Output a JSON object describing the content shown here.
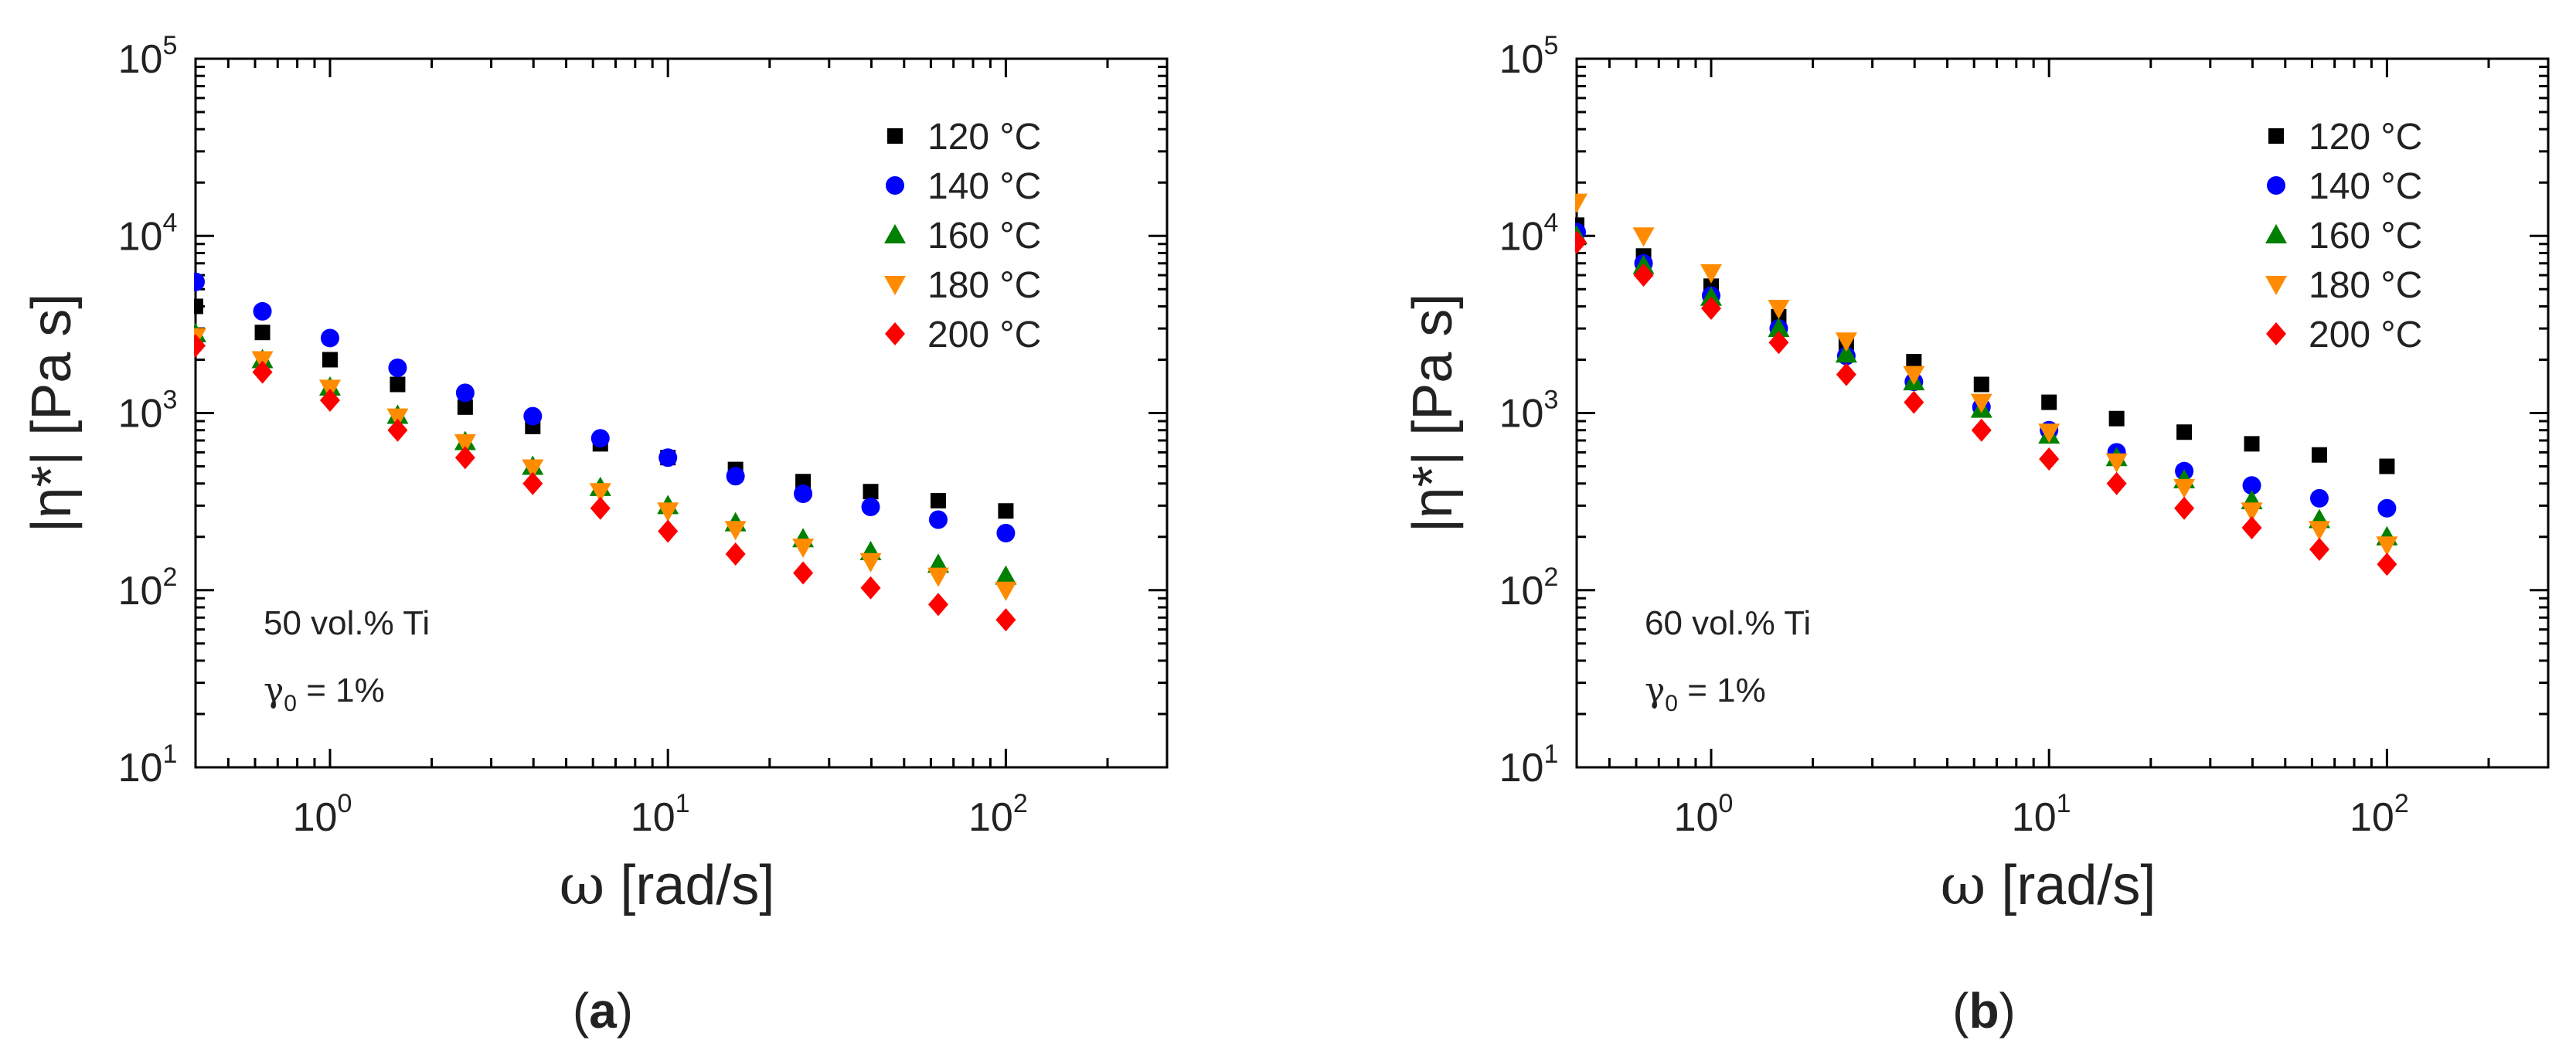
{
  "chart_data": [
    {
      "type": "scatter",
      "panel_label": "a",
      "annotation": "50 vol.% Ti",
      "strain": {
        "symbol": "γ",
        "subscript": "0",
        "value": " = 1%"
      },
      "xlabel": {
        "symbol": "ω",
        "text": " [rad/s]"
      },
      "ylabel": "|η*| [Pa s]",
      "xscale": "log",
      "yscale": "log",
      "xlim": [
        0.4,
        300
      ],
      "ylim": [
        10,
        100000
      ],
      "xticks": [
        {
          "base": "10",
          "exp": "0",
          "value": 1
        },
        {
          "base": "10",
          "exp": "1",
          "value": 10
        },
        {
          "base": "10",
          "exp": "2",
          "value": 100
        }
      ],
      "yticks": [
        {
          "base": "10",
          "exp": "1",
          "value": 10
        },
        {
          "base": "10",
          "exp": "2",
          "value": 100
        },
        {
          "base": "10",
          "exp": "3",
          "value": 1000
        },
        {
          "base": "10",
          "exp": "4",
          "value": 10000
        },
        {
          "base": "10",
          "exp": "5",
          "value": 100000
        }
      ],
      "legend_position": "top-right",
      "x": [
        0.4,
        0.631,
        1,
        1.585,
        2.512,
        3.981,
        6.31,
        10,
        15.85,
        25.12,
        39.81,
        63.1,
        100
      ],
      "series": [
        {
          "name": "120 °C",
          "color": "#000000",
          "marker": "square",
          "values": [
            4000,
            2850,
            2000,
            1450,
            1080,
            840,
            670,
            560,
            480,
            410,
            360,
            320,
            280
          ]
        },
        {
          "name": "140 °C",
          "color": "#0000ff",
          "marker": "circle",
          "values": [
            5500,
            3750,
            2650,
            1800,
            1300,
            960,
            720,
            560,
            440,
            350,
            295,
            250,
            210
          ]
        },
        {
          "name": "160 °C",
          "color": "#008000",
          "marker": "triangle-up",
          "values": [
            2800,
            2000,
            1400,
            970,
            690,
            500,
            380,
            300,
            240,
            195,
            165,
            140,
            120
          ]
        },
        {
          "name": "180 °C",
          "color": "#ff8c00",
          "marker": "triangle-down",
          "values": [
            2700,
            2000,
            1380,
            950,
            680,
            490,
            360,
            280,
            220,
            175,
            145,
            120,
            100
          ]
        },
        {
          "name": "200 °C",
          "color": "#ff0000",
          "marker": "diamond",
          "values": [
            2400,
            1700,
            1180,
            800,
            560,
            400,
            290,
            215,
            160,
            125,
            103,
            83,
            68
          ]
        }
      ]
    },
    {
      "type": "scatter",
      "panel_label": "b",
      "annotation": "60 vol.% Ti",
      "strain": {
        "symbol": "γ",
        "subscript": "0",
        "value": " = 1%"
      },
      "xlabel": {
        "symbol": "ω",
        "text": " [rad/s]"
      },
      "ylabel": "|η*| [Pa s]",
      "xscale": "log",
      "yscale": "log",
      "xlim": [
        0.4,
        300
      ],
      "ylim": [
        10,
        100000
      ],
      "xticks": [
        {
          "base": "10",
          "exp": "0",
          "value": 1
        },
        {
          "base": "10",
          "exp": "1",
          "value": 10
        },
        {
          "base": "10",
          "exp": "2",
          "value": 100
        }
      ],
      "yticks": [
        {
          "base": "10",
          "exp": "1",
          "value": 10
        },
        {
          "base": "10",
          "exp": "2",
          "value": 100
        },
        {
          "base": "10",
          "exp": "3",
          "value": 1000
        },
        {
          "base": "10",
          "exp": "4",
          "value": 10000
        },
        {
          "base": "10",
          "exp": "5",
          "value": 100000
        }
      ],
      "legend_position": "top-right",
      "x": [
        0.4,
        0.631,
        1,
        1.585,
        2.512,
        3.981,
        6.31,
        10,
        15.85,
        25.12,
        39.81,
        63.1,
        100
      ],
      "series": [
        {
          "name": "120 °C",
          "color": "#000000",
          "marker": "square",
          "values": [
            11500,
            7700,
            5200,
            3500,
            2500,
            1950,
            1450,
            1150,
            930,
            780,
            670,
            580,
            500
          ]
        },
        {
          "name": "140 °C",
          "color": "#0000ff",
          "marker": "circle",
          "values": [
            10500,
            7000,
            4600,
            3000,
            2100,
            1500,
            1080,
            800,
            600,
            470,
            390,
            330,
            290
          ]
        },
        {
          "name": "160 °C",
          "color": "#008000",
          "marker": "triangle-up",
          "values": [
            10000,
            6800,
            4500,
            3000,
            2150,
            1500,
            1050,
            750,
            560,
            420,
            320,
            250,
            200
          ]
        },
        {
          "name": "180 °C",
          "color": "#ff8c00",
          "marker": "triangle-down",
          "values": [
            15500,
            10000,
            6200,
            3900,
            2550,
            1650,
            1150,
            780,
            530,
            380,
            280,
            220,
            180
          ]
        },
        {
          "name": "200 °C",
          "color": "#ff0000",
          "marker": "diamond",
          "values": [
            9200,
            6000,
            3900,
            2500,
            1650,
            1150,
            800,
            550,
            400,
            290,
            225,
            170,
            140
          ]
        }
      ]
    }
  ]
}
